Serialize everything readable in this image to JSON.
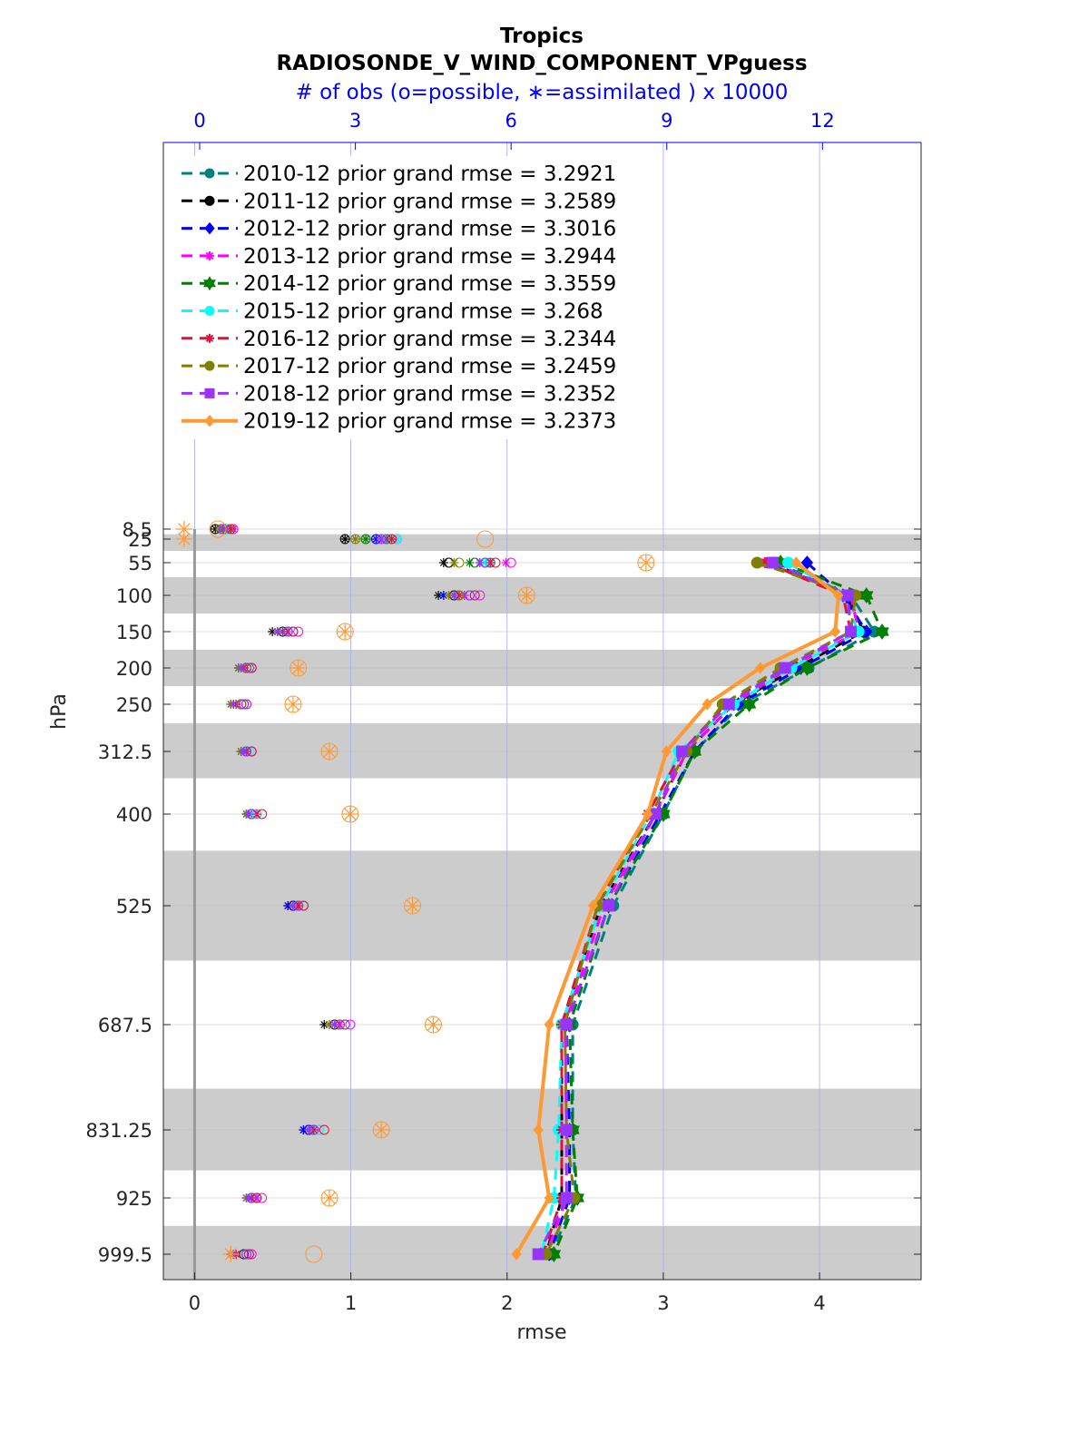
{
  "chart_data": {
    "type": "line",
    "title": "Tropics",
    "subtitle": "RADIOSONDE_V_WIND_COMPONENT_VPguess",
    "xlabel": "rmse",
    "ylabel": "hPa",
    "xlim": [
      -0.2,
      4.65
    ],
    "x_ticks": [
      "0",
      "1",
      "2",
      "3",
      "4"
    ],
    "top_axis": {
      "label": "# of obs (o=possible, ∗=assimilated ) x 10000",
      "ticks": [
        "0",
        "3",
        "6",
        "9",
        "12"
      ],
      "range": [
        -0.7,
        13.9
      ],
      "color": "#0000ff"
    },
    "levels": [
      "8.5",
      "25",
      "55",
      "100",
      "150",
      "200",
      "250",
      "312.5",
      "400",
      "525",
      "687.5",
      "831.25",
      "925",
      "999.5"
    ],
    "level_values": [
      8.5,
      25,
      55,
      100,
      150,
      200,
      250,
      312.5,
      400,
      525,
      687.5,
      831.25,
      925,
      999.5
    ],
    "shaded_bands": [
      [
        17,
        40
      ],
      [
        75,
        125
      ],
      [
        175,
        225
      ],
      [
        275,
        350
      ],
      [
        450,
        600
      ],
      [
        775,
        887
      ],
      [
        962,
        1030
      ]
    ],
    "series": [
      {
        "name": "2010-12 prior grand rmse = 3.2921",
        "color": "#008080",
        "style": "dashed",
        "marker": "circle",
        "rmse": [
          null,
          null,
          3.72,
          4.2,
          4.35,
          3.93,
          3.5,
          3.2,
          3.0,
          2.68,
          2.42,
          2.42,
          2.44,
          2.28
        ],
        "possible": [
          0.55,
          3.6,
          5.6,
          5.3,
          1.8,
          1.0,
          0.9,
          0.9,
          1.0,
          1.9,
          2.8,
          2.2,
          1.1,
          0.95
        ],
        "assimilated": [
          0.55,
          3.6,
          5.6,
          4.7,
          1.5,
          0.8,
          0.7,
          0.8,
          0.9,
          1.8,
          2.6,
          2.1,
          1.0,
          0.65
        ]
      },
      {
        "name": "2011-12 prior grand rmse = 3.2589",
        "color": "#000000",
        "style": "dashed",
        "marker": "circle",
        "rmse": [
          null,
          null,
          3.68,
          4.18,
          4.28,
          3.85,
          3.45,
          3.15,
          2.95,
          2.6,
          2.35,
          2.35,
          2.35,
          2.25
        ],
        "possible": [
          0.3,
          2.8,
          4.8,
          4.9,
          1.6,
          0.9,
          0.8,
          0.9,
          1.0,
          1.8,
          2.6,
          2.1,
          1.0,
          0.85
        ],
        "assimilated": [
          0.3,
          2.8,
          4.7,
          4.6,
          1.4,
          0.75,
          0.6,
          0.8,
          0.9,
          1.7,
          2.4,
          2.0,
          0.9,
          0.6
        ]
      },
      {
        "name": "2012-12 prior grand rmse = 3.3016",
        "color": "#0000ff",
        "style": "dashed",
        "marker": "diamond",
        "rmse": [
          null,
          null,
          3.92,
          4.15,
          4.3,
          3.88,
          3.48,
          3.2,
          2.98,
          2.65,
          2.38,
          2.4,
          2.4,
          2.27
        ],
        "possible": [
          0.45,
          3.4,
          5.5,
          5.0,
          1.7,
          0.9,
          0.8,
          0.9,
          1.0,
          1.8,
          2.7,
          2.1,
          1.0,
          0.9
        ],
        "assimilated": [
          0.45,
          3.4,
          5.4,
          4.7,
          1.5,
          0.75,
          0.65,
          0.8,
          0.9,
          1.7,
          2.5,
          2.0,
          0.9,
          0.6
        ]
      },
      {
        "name": "2013-12 prior grand rmse = 3.2944",
        "color": "#ff00ff",
        "style": "dashed",
        "marker": "star",
        "rmse": [
          null,
          null,
          3.65,
          4.2,
          4.25,
          3.8,
          3.45,
          3.15,
          2.95,
          2.62,
          2.37,
          2.38,
          2.38,
          2.25
        ],
        "possible": [
          0.65,
          3.8,
          6.0,
          5.4,
          1.9,
          1.0,
          0.9,
          1.0,
          1.1,
          2.0,
          2.9,
          2.3,
          1.2,
          1.0
        ],
        "assimilated": [
          0.65,
          3.8,
          5.9,
          5.1,
          1.7,
          0.85,
          0.7,
          0.9,
          1.0,
          1.9,
          2.7,
          2.2,
          1.1,
          0.7
        ]
      },
      {
        "name": "2014-12 prior grand rmse = 3.3559",
        "color": "#008000",
        "style": "dashed",
        "marker": "hexagram",
        "rmse": [
          null,
          null,
          3.75,
          4.3,
          4.4,
          3.92,
          3.55,
          3.2,
          3.0,
          2.65,
          2.4,
          2.42,
          2.45,
          2.3
        ],
        "possible": [
          0.5,
          3.2,
          5.3,
          5.2,
          1.8,
          1.0,
          0.85,
          0.9,
          1.0,
          1.9,
          2.8,
          2.2,
          1.1,
          0.9
        ],
        "assimilated": [
          0.5,
          3.2,
          5.2,
          4.9,
          1.6,
          0.8,
          0.65,
          0.8,
          0.9,
          1.8,
          2.6,
          2.1,
          1.0,
          0.65
        ]
      },
      {
        "name": "2015-12 prior grand rmse = 3.268",
        "color": "#00ffff",
        "style": "dashed",
        "marker": "circle",
        "rmse": [
          null,
          null,
          3.8,
          4.15,
          4.25,
          3.82,
          3.45,
          3.1,
          2.92,
          2.6,
          2.35,
          2.33,
          2.3,
          2.22
        ],
        "possible": [
          0.55,
          3.8,
          5.5,
          5.3,
          1.8,
          1.0,
          0.85,
          0.95,
          1.1,
          2.0,
          2.8,
          2.3,
          1.1,
          0.9
        ],
        "assimilated": [
          0.55,
          3.8,
          5.5,
          5.0,
          1.6,
          0.8,
          0.65,
          0.85,
          1.0,
          1.9,
          2.6,
          2.2,
          1.0,
          0.65
        ]
      },
      {
        "name": "2016-12 prior grand rmse = 3.2344",
        "color": "#dc143c",
        "style": "dashed",
        "marker": "star",
        "rmse": [
          null,
          null,
          3.66,
          4.15,
          4.2,
          3.78,
          3.4,
          3.12,
          2.9,
          2.58,
          2.35,
          2.35,
          2.35,
          2.23
        ],
        "possible": [
          0.6,
          3.7,
          5.7,
          5.3,
          1.8,
          1.0,
          0.85,
          1.0,
          1.2,
          2.0,
          2.8,
          2.4,
          1.1,
          0.95
        ],
        "assimilated": [
          0.6,
          3.7,
          5.6,
          5.0,
          1.6,
          0.85,
          0.7,
          0.9,
          1.1,
          1.9,
          2.6,
          2.2,
          1.0,
          0.7
        ]
      },
      {
        "name": "2017-12 prior grand rmse = 3.2459",
        "color": "#808000",
        "style": "dashed",
        "marker": "circle",
        "rmse": [
          null,
          null,
          3.6,
          4.23,
          4.2,
          3.75,
          3.38,
          3.15,
          2.92,
          2.58,
          2.37,
          2.38,
          2.43,
          2.25
        ],
        "possible": [
          0.4,
          3.0,
          5.0,
          5.0,
          1.7,
          0.9,
          0.8,
          0.9,
          1.0,
          1.9,
          2.7,
          2.2,
          1.0,
          0.9
        ],
        "assimilated": [
          0.4,
          3.0,
          4.9,
          4.8,
          1.5,
          0.75,
          0.6,
          0.8,
          0.9,
          1.8,
          2.5,
          2.1,
          0.9,
          0.6
        ]
      },
      {
        "name": "2018-12 prior grand rmse = 3.2352",
        "color": "#9933ff",
        "style": "dashed",
        "marker": "square",
        "rmse": [
          null,
          null,
          3.7,
          4.18,
          4.2,
          3.78,
          3.42,
          3.12,
          2.95,
          2.65,
          2.38,
          2.38,
          2.38,
          2.2
        ],
        "possible": [
          0.45,
          3.5,
          5.5,
          5.2,
          1.7,
          0.95,
          0.85,
          0.9,
          1.0,
          1.9,
          2.8,
          2.2,
          1.0,
          0.9
        ],
        "assimilated": [
          0.45,
          3.5,
          5.4,
          4.9,
          1.5,
          0.8,
          0.65,
          0.85,
          0.95,
          1.8,
          2.6,
          2.1,
          0.95,
          0.65
        ]
      },
      {
        "name": "2019-12 prior grand rmse = 3.2373",
        "color": "#ff9933",
        "style": "solid",
        "marker": "diamond",
        "rmse": [
          null,
          null,
          3.85,
          4.12,
          4.1,
          3.62,
          3.28,
          3.02,
          2.9,
          2.55,
          2.27,
          2.2,
          2.27,
          2.06
        ],
        "possible": [
          0.35,
          5.5,
          8.6,
          6.3,
          2.8,
          1.9,
          1.8,
          2.5,
          2.9,
          4.1,
          4.5,
          3.5,
          2.5,
          2.2
        ],
        "assimilated": [
          -0.3,
          -0.3,
          8.6,
          6.3,
          2.8,
          1.9,
          1.8,
          2.5,
          2.9,
          4.1,
          4.5,
          3.5,
          2.5,
          0.6
        ]
      }
    ]
  }
}
